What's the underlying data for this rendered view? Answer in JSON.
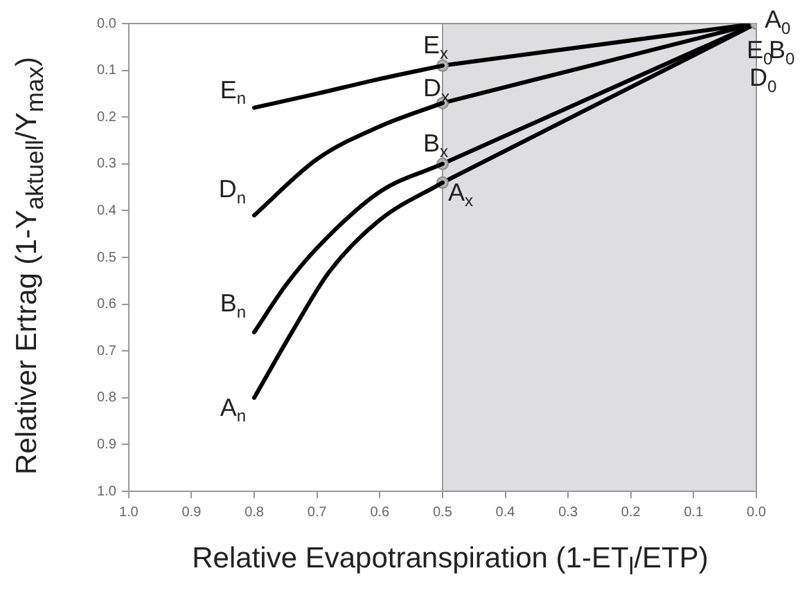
{
  "chart_data": {
    "type": "line",
    "xlabel": "Relative Evapotranspiration (1-ET$_{l}$/ETP)",
    "ylabel": "Relativer Ertrag (1-Y$_{aktuell}$/Y$_{max}$)",
    "series": [
      {
        "color": "#000000",
        "marker": "none",
        "x": [
          0.8,
          0.7,
          0.605,
          0.5
        ],
        "values": [
          0.18,
          0.15,
          0.12,
          0.09
        ]
      },
      {
        "color": "#000000",
        "marker": "none",
        "x": [
          0.8,
          0.7,
          0.6,
          0.5
        ],
        "values": [
          0.41,
          0.29,
          0.22,
          0.17
        ]
      },
      {
        "color": "#000000",
        "marker": "none",
        "x": [
          0.8,
          0.75,
          0.7,
          0.6,
          0.5
        ],
        "values": [
          0.66,
          0.56,
          0.48,
          0.36,
          0.3
        ]
      },
      {
        "color": "#000000",
        "marker": "none",
        "x": [
          0.8,
          0.74,
          0.68,
          0.6,
          0.5
        ],
        "values": [
          0.8,
          0.66,
          0.53,
          0.42,
          0.34
        ]
      },
      {
        "color": "#000000",
        "marker": "circle",
        "x": [
          0.5,
          0.0
        ],
        "values": [
          0.09,
          0.0
        ]
      },
      {
        "color": "#000000",
        "marker": "circle",
        "x": [
          0.5,
          0.0
        ],
        "values": [
          0.17,
          0.0
        ]
      },
      {
        "color": "#000000",
        "marker": "circle",
        "x": [
          0.5,
          0.0
        ],
        "values": [
          0.3,
          0.0
        ]
      },
      {
        "color": "#000000",
        "marker": "circle",
        "x": [
          0.5,
          0.0
        ],
        "values": [
          0.34,
          0.0
        ]
      }
    ],
    "bands": [
      {
        "axis": "x",
        "from": 0.5,
        "to": 0.0,
        "color": "#dedee2"
      }
    ],
    "annotations": [
      {
        "text": "E$_{n}$",
        "x": 0.8,
        "y": 0.18
      },
      {
        "text": "D$_{n}$",
        "x": 0.8,
        "y": 0.41
      },
      {
        "text": "B$_{n}$",
        "x": 0.8,
        "y": 0.66
      },
      {
        "text": "A$_{n}$",
        "x": 0.8,
        "y": 0.8
      },
      {
        "text": "E$_{x}$",
        "x": 0.5,
        "y": 0.09
      },
      {
        "text": "D$_{x}$",
        "x": 0.5,
        "y": 0.17
      },
      {
        "text": "B$_{x}$",
        "x": 0.5,
        "y": 0.3
      },
      {
        "text": "A$_{x}$",
        "x": 0.5,
        "y": 0.34
      },
      {
        "text": "A$_{0}$",
        "x": 0.0,
        "y": 0.0
      },
      {
        "text": "E$_{0}$",
        "x": 0.0,
        "y": 0.0
      },
      {
        "text": "B$_{0}$",
        "x": 0.0,
        "y": 0.0
      },
      {
        "text": "D$_{0}$",
        "x": 0.0,
        "y": 0.0
      }
    ],
    "xlim": [
      1.0,
      0.0
    ],
    "xticks": [
      {
        "value": 1.0,
        "label": "1.0"
      },
      0.9,
      0.8,
      0.7,
      0.6,
      0.5,
      0.4,
      0.3,
      0.2,
      0.1,
      {
        "value": 0.0,
        "label": "0.0"
      }
    ],
    "ylim": [
      1.0,
      0.0
    ],
    "yticks": [
      {
        "value": 0.0,
        "label": "0.0"
      },
      0.1,
      0.2,
      0.3,
      0.4,
      0.5,
      0.6,
      0.7,
      0.8,
      0.9,
      {
        "value": 1.0,
        "label": "1.0"
      }
    ],
    "grid": false,
    "legend": false
  }
}
